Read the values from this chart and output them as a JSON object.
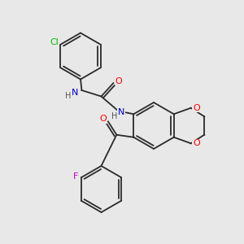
{
  "background_color": "#e8e8e8",
  "bond_color": "#2a2a2a",
  "atom_colors": {
    "N": "#0000cc",
    "O": "#ff0000",
    "Cl": "#00bb00",
    "F": "#bb00bb",
    "H": "#555555",
    "C": "#2a2a2a"
  },
  "figsize": [
    3.0,
    3.0
  ],
  "dpi": 100
}
